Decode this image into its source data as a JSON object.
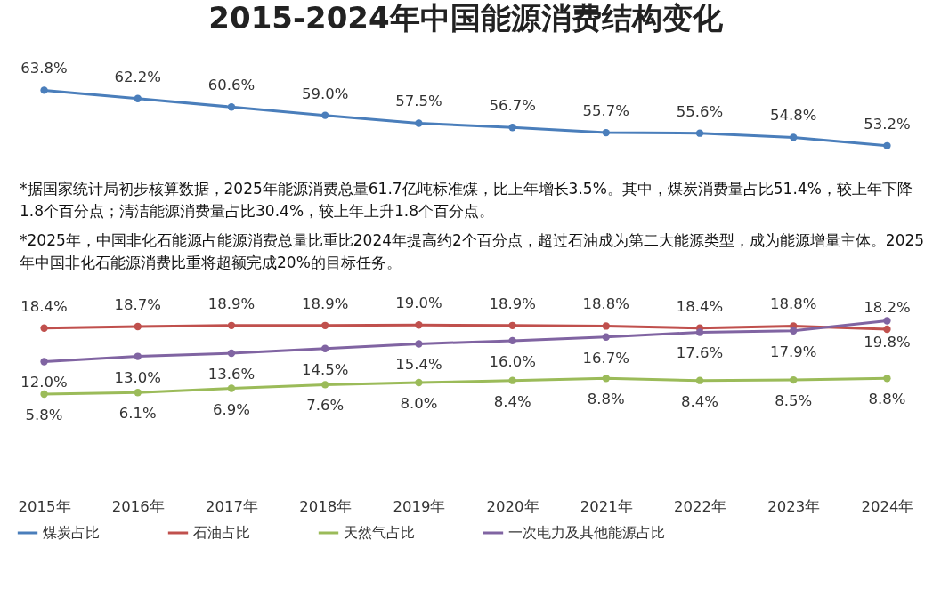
{
  "chart_data": {
    "type": "line",
    "title": "2015-2024年中国能源消费结构变化",
    "categories": [
      "2015年",
      "2016年",
      "2017年",
      "2018年",
      "2019年",
      "2020年",
      "2021年",
      "2022年",
      "2023年",
      "2024年"
    ],
    "series": [
      {
        "name": "煤炭占比",
        "color": "#4a7ebb",
        "values": [
          63.8,
          62.2,
          60.6,
          59.0,
          57.5,
          56.7,
          55.7,
          55.6,
          54.8,
          53.2
        ],
        "value_labels": [
          "63.8%",
          "62.2%",
          "60.6%",
          "59.0%",
          "57.5%",
          "56.7%",
          "55.7%",
          "55.6%",
          "54.8%",
          "53.2%"
        ]
      },
      {
        "name": "石油占比",
        "color": "#c0504d",
        "values": [
          18.4,
          18.7,
          18.9,
          18.9,
          19.0,
          18.9,
          18.8,
          18.4,
          18.8,
          18.2
        ],
        "value_labels": [
          "18.4%",
          "18.7%",
          "18.9%",
          "18.9%",
          "19.0%",
          "18.9%",
          "18.8%",
          "18.4%",
          "18.8%",
          "18.2%"
        ]
      },
      {
        "name": "天然气占比",
        "color": "#9bbb59",
        "values": [
          5.8,
          6.1,
          6.9,
          7.6,
          8.0,
          8.4,
          8.8,
          8.4,
          8.5,
          8.8
        ],
        "value_labels": [
          "5.8%",
          "6.1%",
          "6.9%",
          "7.6%",
          "8.0%",
          "8.4%",
          "8.8%",
          "8.4%",
          "8.5%",
          "8.8%"
        ]
      },
      {
        "name": "一次电力及其他能源占比",
        "color": "#8064a2",
        "values": [
          12.0,
          13.0,
          13.6,
          14.5,
          15.4,
          16.0,
          16.7,
          17.6,
          17.9,
          19.8
        ],
        "value_labels": [
          "12.0%",
          "13.0%",
          "13.6%",
          "14.5%",
          "15.4%",
          "16.0%",
          "16.7%",
          "17.6%",
          "17.9%",
          "19.8%"
        ]
      }
    ],
    "annotations": [
      "*据国家统计局初步核算数据，2025年能源消费总量61.7亿吨标准煤，比上年增长3.5%。其中，煤炭消费量占比51.4%，较上年下降1.8个百分点；清洁能源消费量占比30.4%，较上年上升1.8个百分点。",
      "*2025年，中国非化石能源占能源消费总量比重比2024年提高约2个百分点，超过石油成为第二大能源类型，成为能源增量主体。2025年中国非化石能源消费比重将超额完成20%的目标任务。"
    ],
    "tick_labels": "x",
    "legend": "bottom",
    "marker": "circle",
    "line_style": "solid"
  }
}
